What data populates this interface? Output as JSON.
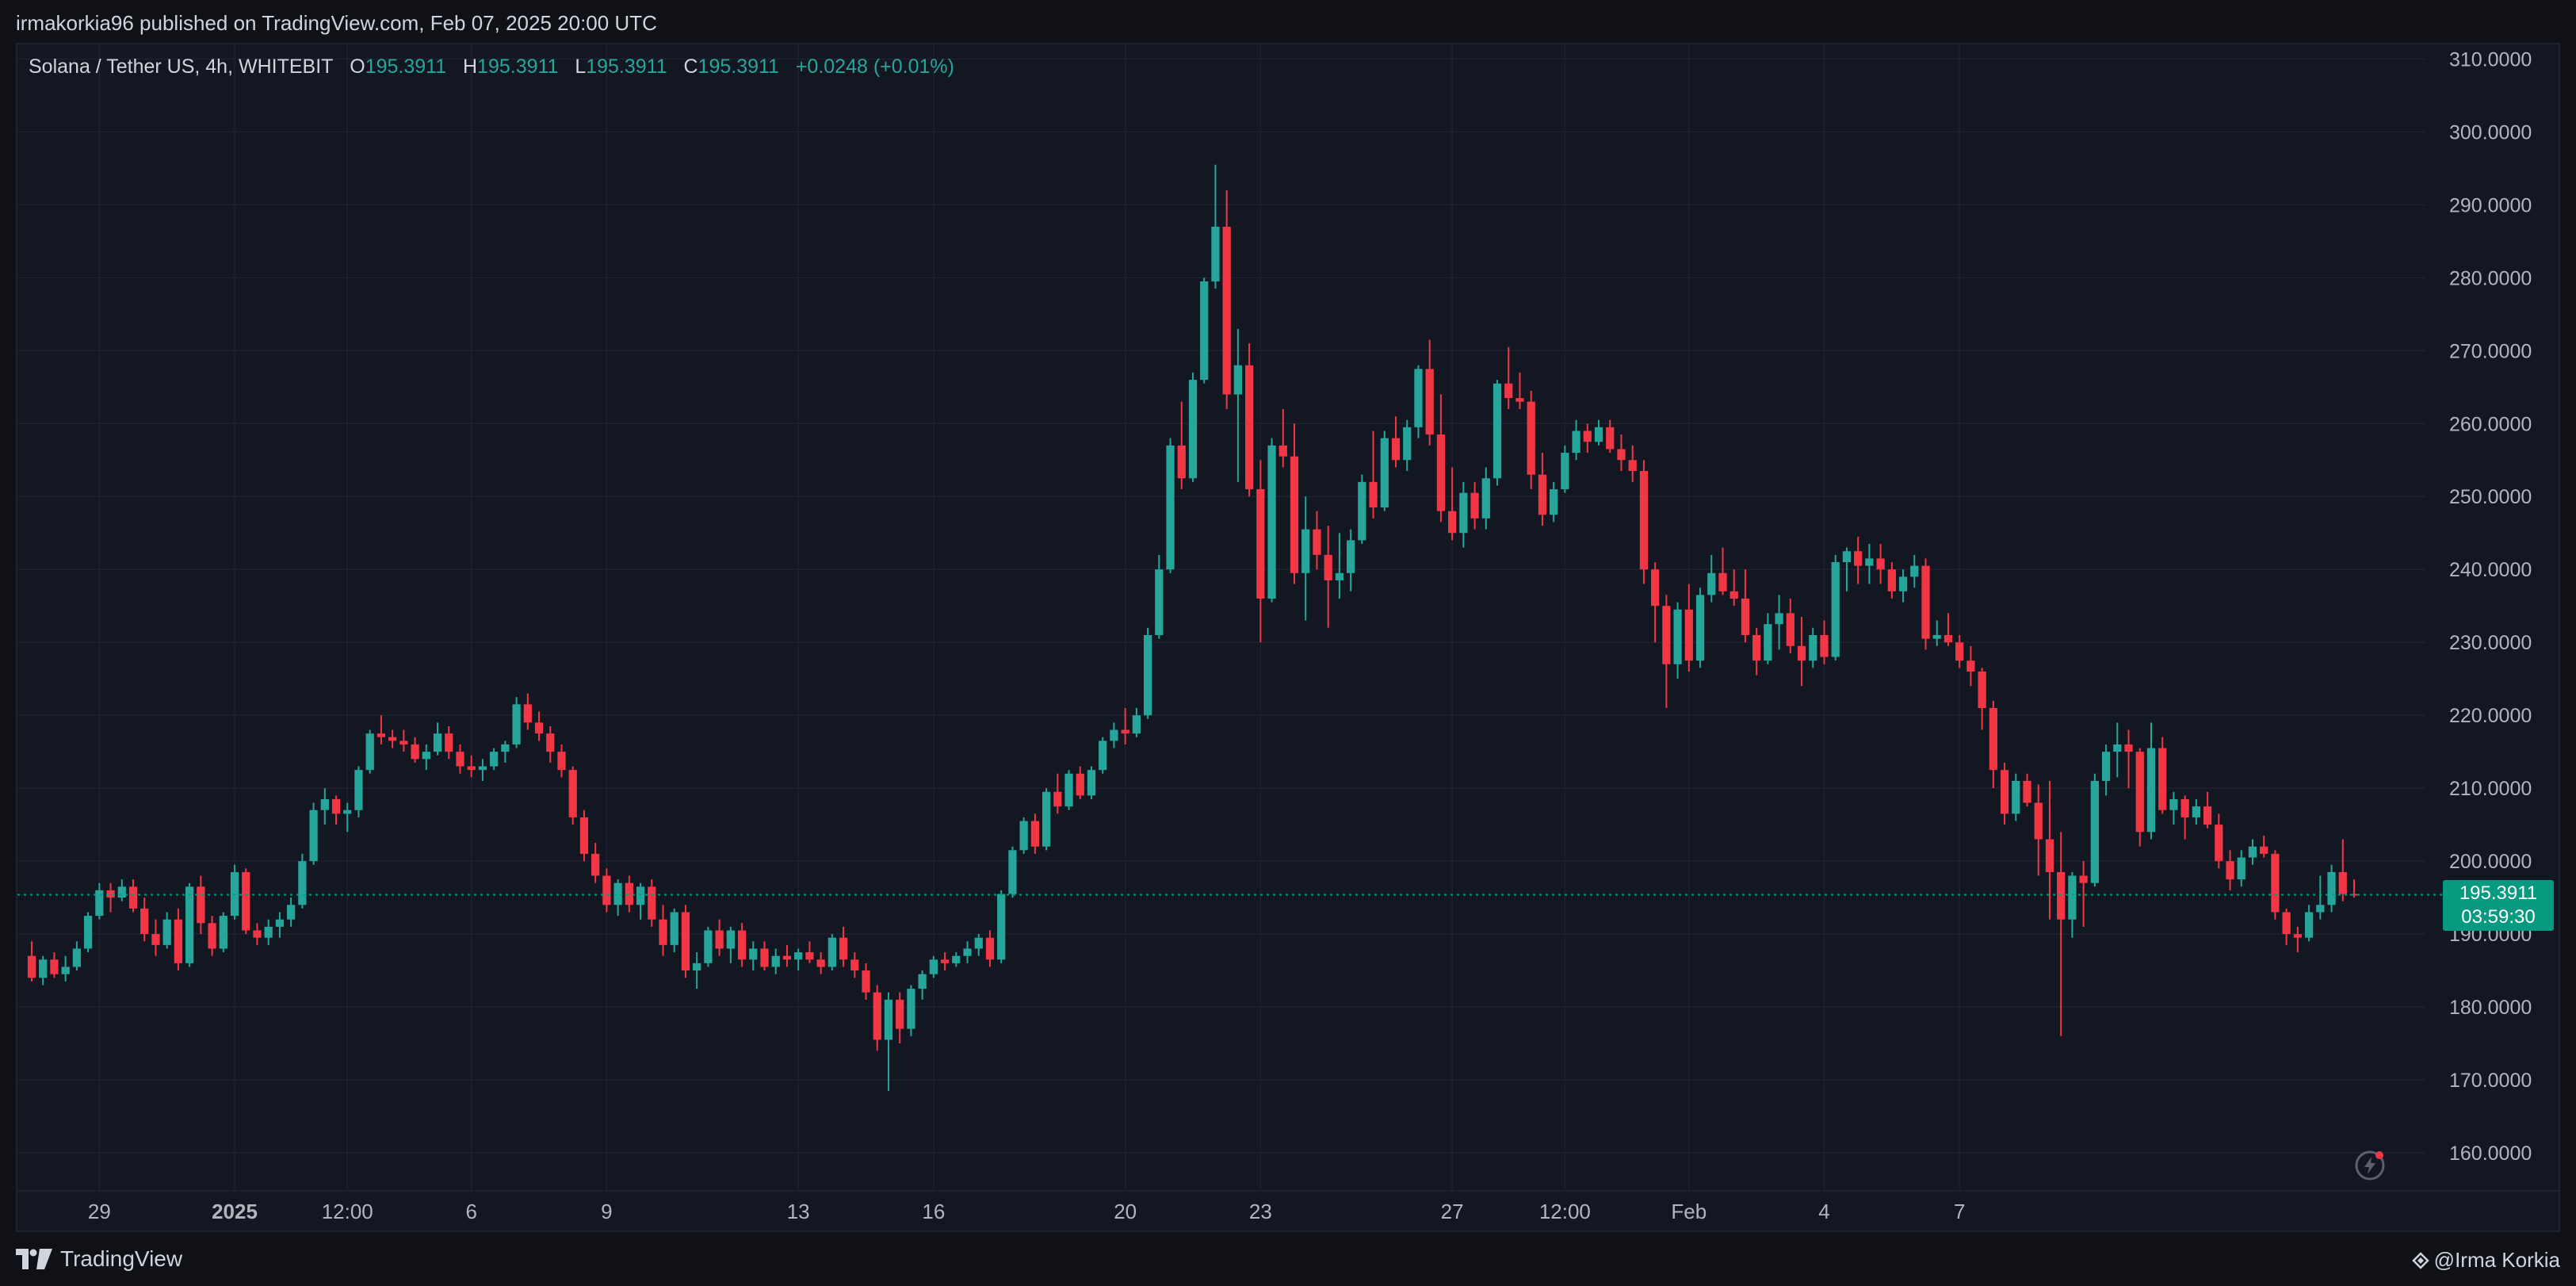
{
  "header": {
    "published": "irmakorkia96 published on TradingView.com, Feb 07, 2025 20:00 UTC"
  },
  "legend": {
    "symbol": "Solana / Tether US, 4h, WHITEBIT",
    "o_label": "O",
    "o": "195.3911",
    "h_label": "H",
    "h": "195.3911",
    "l_label": "L",
    "l": "195.3911",
    "c_label": "C",
    "c": "195.3911",
    "change": "+0.0248 (+0.01%)"
  },
  "price_tag": {
    "price": "195.3911",
    "countdown": "03:59:30"
  },
  "footer": {
    "brand": "TradingView",
    "author": "@Irma Korkia"
  },
  "colors": {
    "up": "#26a69a",
    "down": "#f23645",
    "background": "#131722",
    "grid": "#1e2230",
    "text": "#b2b5be",
    "last_price": "#089981"
  },
  "chart_data": {
    "type": "candlestick",
    "title": "Solana / Tether US, 4h, WHITEBIT",
    "ylim": [
      155,
      312
    ],
    "y_ticks": [
      "160.0000",
      "170.0000",
      "180.0000",
      "190.0000",
      "200.0000",
      "210.0000",
      "220.0000",
      "230.0000",
      "240.0000",
      "250.0000",
      "260.0000",
      "270.0000",
      "280.0000",
      "290.0000",
      "300.0000",
      "310.0000"
    ],
    "x_ticks": [
      {
        "label": "29",
        "i": 6
      },
      {
        "label": "2025",
        "i": 18
      },
      {
        "label": "12:00",
        "i": 28
      },
      {
        "label": "6",
        "i": 39
      },
      {
        "label": "9",
        "i": 51
      },
      {
        "label": "13",
        "i": 68
      },
      {
        "label": "16",
        "i": 80
      },
      {
        "label": "20",
        "i": 97
      },
      {
        "label": "23",
        "i": 109
      },
      {
        "label": "27",
        "i": 126
      },
      {
        "label": "12:00",
        "i": 136
      },
      {
        "label": "Feb",
        "i": 147
      },
      {
        "label": "4",
        "i": 159
      },
      {
        "label": "7",
        "i": 171
      }
    ],
    "last_price": 195.3911,
    "grid": true,
    "candles": [
      [
        187.0,
        189.0,
        183.5,
        184.0
      ],
      [
        184.0,
        187.0,
        183.0,
        186.5
      ],
      [
        186.5,
        187.5,
        184.0,
        184.5
      ],
      [
        184.5,
        187.0,
        183.5,
        185.5
      ],
      [
        185.5,
        189.0,
        185.0,
        188.0
      ],
      [
        188.0,
        193.0,
        187.5,
        192.5
      ],
      [
        192.5,
        197.0,
        192.0,
        196.0
      ],
      [
        196.0,
        197.0,
        193.0,
        195.0
      ],
      [
        195.0,
        197.5,
        194.5,
        196.5
      ],
      [
        196.5,
        197.5,
        193.0,
        193.5
      ],
      [
        193.5,
        195.0,
        189.0,
        190.0
      ],
      [
        190.0,
        192.0,
        187.0,
        188.5
      ],
      [
        188.5,
        193.0,
        188.0,
        192.0
      ],
      [
        192.0,
        193.5,
        185.0,
        186.0
      ],
      [
        186.0,
        197.0,
        185.5,
        196.5
      ],
      [
        196.5,
        198.0,
        190.0,
        191.5
      ],
      [
        191.5,
        192.5,
        187.0,
        188.0
      ],
      [
        188.0,
        193.0,
        187.5,
        192.5
      ],
      [
        192.5,
        199.5,
        192.0,
        198.5
      ],
      [
        198.5,
        199.0,
        190.0,
        190.5
      ],
      [
        190.5,
        191.5,
        188.5,
        189.5
      ],
      [
        189.5,
        192.0,
        188.5,
        191.0
      ],
      [
        191.0,
        193.0,
        189.5,
        192.0
      ],
      [
        192.0,
        195.0,
        191.0,
        194.0
      ],
      [
        194.0,
        201.0,
        193.5,
        200.0
      ],
      [
        200.0,
        208.0,
        199.5,
        207.0
      ],
      [
        207.0,
        210.0,
        205.0,
        208.5
      ],
      [
        208.5,
        209.0,
        205.0,
        206.5
      ],
      [
        206.5,
        208.0,
        204.0,
        207.0
      ],
      [
        207.0,
        213.0,
        206.0,
        212.5
      ],
      [
        212.5,
        218.0,
        212.0,
        217.5
      ],
      [
        217.5,
        220.0,
        216.0,
        217.0
      ],
      [
        217.0,
        218.0,
        215.5,
        216.5
      ],
      [
        216.5,
        218.0,
        215.0,
        216.0
      ],
      [
        216.0,
        217.0,
        213.5,
        214.0
      ],
      [
        214.0,
        216.0,
        212.5,
        215.0
      ],
      [
        215.0,
        219.0,
        214.5,
        217.5
      ],
      [
        217.5,
        218.5,
        214.0,
        215.0
      ],
      [
        215.0,
        216.0,
        212.0,
        213.0
      ],
      [
        213.0,
        214.5,
        211.5,
        212.5
      ],
      [
        212.5,
        214.0,
        211.0,
        213.0
      ],
      [
        213.0,
        215.5,
        212.5,
        215.0
      ],
      [
        215.0,
        216.5,
        213.5,
        216.0
      ],
      [
        216.0,
        222.5,
        215.5,
        221.5
      ],
      [
        221.5,
        223.0,
        218.0,
        219.0
      ],
      [
        219.0,
        220.5,
        216.5,
        217.5
      ],
      [
        217.5,
        218.5,
        213.5,
        215.0
      ],
      [
        215.0,
        216.0,
        211.5,
        212.5
      ],
      [
        212.5,
        213.0,
        205.0,
        206.0
      ],
      [
        206.0,
        207.0,
        200.0,
        201.0
      ],
      [
        201.0,
        202.5,
        197.0,
        198.0
      ],
      [
        198.0,
        199.0,
        193.0,
        194.0
      ],
      [
        194.0,
        197.5,
        192.5,
        197.0
      ],
      [
        197.0,
        198.0,
        193.0,
        194.0
      ],
      [
        194.0,
        197.0,
        192.0,
        196.5
      ],
      [
        196.5,
        197.5,
        191.0,
        192.0
      ],
      [
        192.0,
        194.0,
        187.0,
        188.5
      ],
      [
        188.5,
        193.5,
        187.5,
        193.0
      ],
      [
        193.0,
        194.0,
        184.0,
        185.0
      ],
      [
        185.0,
        187.5,
        182.5,
        186.0
      ],
      [
        186.0,
        191.0,
        185.5,
        190.5
      ],
      [
        190.5,
        192.0,
        187.0,
        188.0
      ],
      [
        188.0,
        191.0,
        186.0,
        190.5
      ],
      [
        190.5,
        191.5,
        185.5,
        186.5
      ],
      [
        186.5,
        189.0,
        185.0,
        188.0
      ],
      [
        188.0,
        189.0,
        185.0,
        185.5
      ],
      [
        185.5,
        188.0,
        184.5,
        187.0
      ],
      [
        187.0,
        188.5,
        185.5,
        186.5
      ],
      [
        186.5,
        188.0,
        185.0,
        187.5
      ],
      [
        187.5,
        189.0,
        186.0,
        186.5
      ],
      [
        186.5,
        187.5,
        184.5,
        185.5
      ],
      [
        185.5,
        190.0,
        185.0,
        189.5
      ],
      [
        189.5,
        191.0,
        185.5,
        186.5
      ],
      [
        186.5,
        187.5,
        184.0,
        185.0
      ],
      [
        185.0,
        186.0,
        181.0,
        182.0
      ],
      [
        182.0,
        183.0,
        174.0,
        175.5
      ],
      [
        175.5,
        182.0,
        168.5,
        181.0
      ],
      [
        181.0,
        182.0,
        175.0,
        177.0
      ],
      [
        177.0,
        183.0,
        176.0,
        182.5
      ],
      [
        182.5,
        185.0,
        181.0,
        184.5
      ],
      [
        184.5,
        187.0,
        184.0,
        186.5
      ],
      [
        186.5,
        187.5,
        185.0,
        186.0
      ],
      [
        186.0,
        187.5,
        185.5,
        187.0
      ],
      [
        187.0,
        189.0,
        186.0,
        188.0
      ],
      [
        188.0,
        190.0,
        187.0,
        189.5
      ],
      [
        189.5,
        190.5,
        185.5,
        186.5
      ],
      [
        186.5,
        196.0,
        186.0,
        195.5
      ],
      [
        195.5,
        202.0,
        195.0,
        201.5
      ],
      [
        201.5,
        206.0,
        201.0,
        205.5
      ],
      [
        205.5,
        206.5,
        201.0,
        202.0
      ],
      [
        202.0,
        210.0,
        201.5,
        209.5
      ],
      [
        209.5,
        212.0,
        206.5,
        207.5
      ],
      [
        207.5,
        212.5,
        207.0,
        212.0
      ],
      [
        212.0,
        213.0,
        208.5,
        209.0
      ],
      [
        209.0,
        213.0,
        208.5,
        212.5
      ],
      [
        212.5,
        217.0,
        212.0,
        216.5
      ],
      [
        216.5,
        219.0,
        215.5,
        218.0
      ],
      [
        218.0,
        221.0,
        216.0,
        217.5
      ],
      [
        217.5,
        221.0,
        217.0,
        220.0
      ],
      [
        220.0,
        232.0,
        219.5,
        231.0
      ],
      [
        231.0,
        242.0,
        230.5,
        240.0
      ],
      [
        240.0,
        258.0,
        239.5,
        257.0
      ],
      [
        257.0,
        263.0,
        251.0,
        252.5
      ],
      [
        252.5,
        267.0,
        252.0,
        266.0
      ],
      [
        266.0,
        280.0,
        265.5,
        279.5
      ],
      [
        279.5,
        295.5,
        278.5,
        287.0
      ],
      [
        287.0,
        292.0,
        262.0,
        264.0
      ],
      [
        264.0,
        273.0,
        252.0,
        268.0
      ],
      [
        268.0,
        271.0,
        250.0,
        251.0
      ],
      [
        251.0,
        255.0,
        230.0,
        236.0
      ],
      [
        236.0,
        258.0,
        235.5,
        257.0
      ],
      [
        257.0,
        262.0,
        254.0,
        255.5
      ],
      [
        255.5,
        260.0,
        238.0,
        239.5
      ],
      [
        239.5,
        250.0,
        233.0,
        245.5
      ],
      [
        245.5,
        248.0,
        240.0,
        242.0
      ],
      [
        242.0,
        246.0,
        232.0,
        238.5
      ],
      [
        238.5,
        245.0,
        236.0,
        239.5
      ],
      [
        239.5,
        245.5,
        237.0,
        244.0
      ],
      [
        244.0,
        253.0,
        243.5,
        252.0
      ],
      [
        252.0,
        259.0,
        247.0,
        248.5
      ],
      [
        248.5,
        259.0,
        248.0,
        258.0
      ],
      [
        258.0,
        261.0,
        254.0,
        255.0
      ],
      [
        255.0,
        260.5,
        253.5,
        259.5
      ],
      [
        259.5,
        268.0,
        258.0,
        267.5
      ],
      [
        267.5,
        271.5,
        257.0,
        258.5
      ],
      [
        258.5,
        264.0,
        246.5,
        248.0
      ],
      [
        248.0,
        254.0,
        244.0,
        245.0
      ],
      [
        245.0,
        252.0,
        243.0,
        250.5
      ],
      [
        250.5,
        252.0,
        245.5,
        247.0
      ],
      [
        247.0,
        254.0,
        245.5,
        252.5
      ],
      [
        252.5,
        266.0,
        251.5,
        265.5
      ],
      [
        265.5,
        270.5,
        262.0,
        263.5
      ],
      [
        263.5,
        267.0,
        262.0,
        263.0
      ],
      [
        263.0,
        264.5,
        251.0,
        253.0
      ],
      [
        253.0,
        256.0,
        246.0,
        247.5
      ],
      [
        247.5,
        252.0,
        246.5,
        251.0
      ],
      [
        251.0,
        257.0,
        250.5,
        256.0
      ],
      [
        256.0,
        260.5,
        255.0,
        259.0
      ],
      [
        259.0,
        260.0,
        256.0,
        257.5
      ],
      [
        257.5,
        260.5,
        257.0,
        259.5
      ],
      [
        259.5,
        260.5,
        256.0,
        256.5
      ],
      [
        256.5,
        258.5,
        253.5,
        255.0
      ],
      [
        255.0,
        257.0,
        252.0,
        253.5
      ],
      [
        253.5,
        255.0,
        238.0,
        240.0
      ],
      [
        240.0,
        241.0,
        230.0,
        235.0
      ],
      [
        235.0,
        236.5,
        221.0,
        227.0
      ],
      [
        227.0,
        235.5,
        225.0,
        234.5
      ],
      [
        234.5,
        238.0,
        226.0,
        227.5
      ],
      [
        227.5,
        237.5,
        226.5,
        236.5
      ],
      [
        236.5,
        242.0,
        235.5,
        239.5
      ],
      [
        239.5,
        243.0,
        236.5,
        237.0
      ],
      [
        237.0,
        240.0,
        235.0,
        236.0
      ],
      [
        236.0,
        240.0,
        230.0,
        231.0
      ],
      [
        231.0,
        232.0,
        225.5,
        227.5
      ],
      [
        227.5,
        234.0,
        227.0,
        232.5
      ],
      [
        232.5,
        236.5,
        229.0,
        234.0
      ],
      [
        234.0,
        236.0,
        228.5,
        229.5
      ],
      [
        229.5,
        233.5,
        224.0,
        227.5
      ],
      [
        227.5,
        232.0,
        226.5,
        231.0
      ],
      [
        231.0,
        233.0,
        227.0,
        228.0
      ],
      [
        228.0,
        242.0,
        227.5,
        241.0
      ],
      [
        241.0,
        243.0,
        237.0,
        242.5
      ],
      [
        242.5,
        244.5,
        238.0,
        240.5
      ],
      [
        240.5,
        243.5,
        238.0,
        241.5
      ],
      [
        241.5,
        243.5,
        238.0,
        240.0
      ],
      [
        240.0,
        241.0,
        236.0,
        237.0
      ],
      [
        237.0,
        240.0,
        235.5,
        239.0
      ],
      [
        239.0,
        242.0,
        237.5,
        240.5
      ],
      [
        240.5,
        241.5,
        229.0,
        230.5
      ],
      [
        230.5,
        233.0,
        229.5,
        231.0
      ],
      [
        231.0,
        234.0,
        229.5,
        230.0
      ],
      [
        230.0,
        231.0,
        226.5,
        227.5
      ],
      [
        227.5,
        229.5,
        224.0,
        226.0
      ],
      [
        226.0,
        226.5,
        218.0,
        221.0
      ],
      [
        221.0,
        222.0,
        210.0,
        212.5
      ],
      [
        212.5,
        213.5,
        205.0,
        206.5
      ],
      [
        206.5,
        212.0,
        205.5,
        211.0
      ],
      [
        211.0,
        212.0,
        207.5,
        208.0
      ],
      [
        208.0,
        210.5,
        198.0,
        203.0
      ],
      [
        203.0,
        211.0,
        192.0,
        198.5
      ],
      [
        198.5,
        204.0,
        176.0,
        192.0
      ],
      [
        192.0,
        198.5,
        189.5,
        198.0
      ],
      [
        198.0,
        200.0,
        191.0,
        197.0
      ],
      [
        197.0,
        212.0,
        196.5,
        211.0
      ],
      [
        211.0,
        216.0,
        209.0,
        215.0
      ],
      [
        215.0,
        219.0,
        211.5,
        216.0
      ],
      [
        216.0,
        218.0,
        210.0,
        215.0
      ],
      [
        215.0,
        215.5,
        202.0,
        204.0
      ],
      [
        204.0,
        219.0,
        203.0,
        215.5
      ],
      [
        215.5,
        217.0,
        206.5,
        207.0
      ],
      [
        207.0,
        209.5,
        205.0,
        208.5
      ],
      [
        208.5,
        209.0,
        203.0,
        206.0
      ],
      [
        206.0,
        208.5,
        205.0,
        207.5
      ],
      [
        207.5,
        209.5,
        204.5,
        205.0
      ],
      [
        205.0,
        206.5,
        199.0,
        200.0
      ],
      [
        200.0,
        201.5,
        196.0,
        197.5
      ],
      [
        197.5,
        201.5,
        196.5,
        200.5
      ],
      [
        200.5,
        203.0,
        199.5,
        202.0
      ],
      [
        202.0,
        203.5,
        200.5,
        201.0
      ],
      [
        201.0,
        201.5,
        192.0,
        193.0
      ],
      [
        193.0,
        193.5,
        188.5,
        190.0
      ],
      [
        190.0,
        191.0,
        187.5,
        189.5
      ],
      [
        189.5,
        194.0,
        189.0,
        193.0
      ],
      [
        193.0,
        198.0,
        192.0,
        194.0
      ],
      [
        194.0,
        199.5,
        193.0,
        198.5
      ],
      [
        198.5,
        203.0,
        194.5,
        195.5
      ],
      [
        195.5,
        197.5,
        195.0,
        195.3911
      ]
    ]
  }
}
